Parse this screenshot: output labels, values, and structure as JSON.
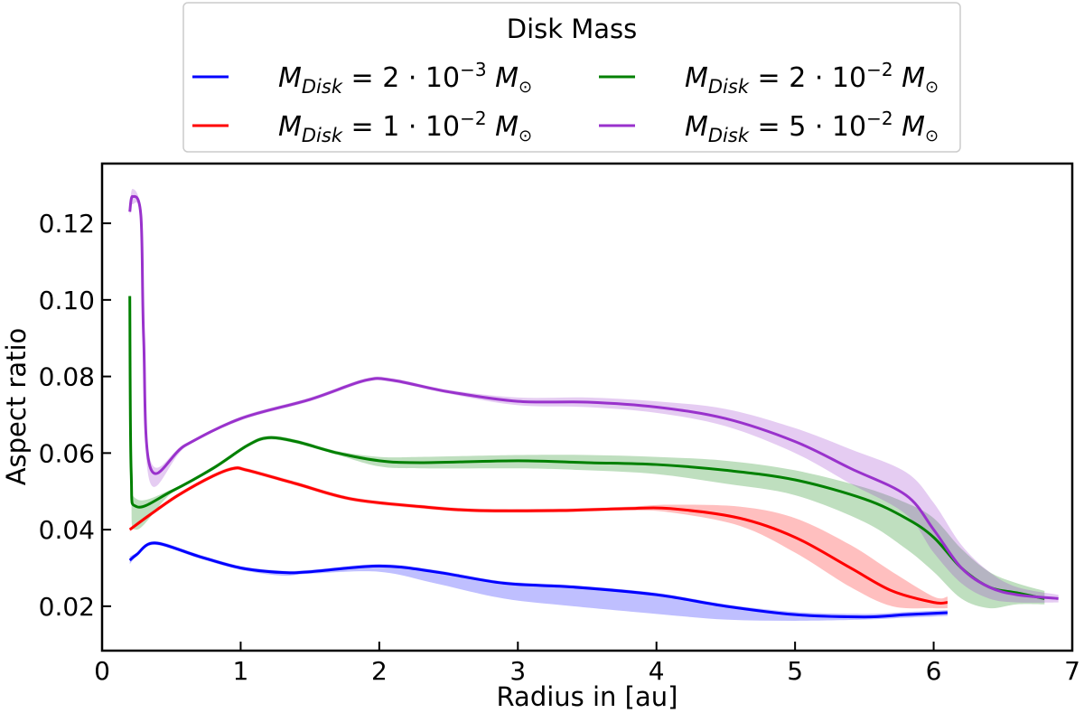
{
  "chart_data": {
    "type": "line",
    "title": "",
    "xlabel": "Radius in [au]",
    "ylabel": "Aspect ratio",
    "xlim": [
      0,
      7
    ],
    "ylim": [
      0.0084,
      0.1356
    ],
    "xticks": [
      "0",
      "1",
      "2",
      "3",
      "4",
      "5",
      "6",
      "7"
    ],
    "yticks": [
      "0.02",
      "0.04",
      "0.06",
      "0.08",
      "0.10",
      "0.12"
    ],
    "grid": false,
    "legend": {
      "title": "Disk Mass",
      "placement": "top-center, above plot",
      "columns": 2
    },
    "series": [
      {
        "label": {
          "symbol": "M",
          "subscript": "Disk",
          "coef": "2",
          "exp": "−3",
          "unit": "M",
          "unit_sub": "⊙"
        },
        "color": "#0000ff",
        "x": [
          0.2,
          0.25,
          0.38,
          0.7,
          1.0,
          1.3,
          1.5,
          2.0,
          2.4,
          2.9,
          3.4,
          4.0,
          4.5,
          5.0,
          5.5,
          5.8,
          6.1
        ],
        "y": [
          0.032,
          0.0335,
          0.0365,
          0.033,
          0.03,
          0.0288,
          0.029,
          0.0305,
          0.029,
          0.026,
          0.025,
          0.023,
          0.02,
          0.0178,
          0.0172,
          0.0178,
          0.0183
        ],
        "band_low": [
          0.031,
          0.033,
          0.036,
          0.0325,
          0.0295,
          0.028,
          0.0285,
          0.029,
          0.026,
          0.022,
          0.02,
          0.018,
          0.0165,
          0.0162,
          0.0165,
          0.017,
          0.0175
        ],
        "band_high": [
          0.033,
          0.034,
          0.037,
          0.0335,
          0.0305,
          0.0293,
          0.0295,
          0.031,
          0.0295,
          0.0265,
          0.0255,
          0.0235,
          0.0205,
          0.0185,
          0.018,
          0.0185,
          0.019
        ]
      },
      {
        "label": {
          "symbol": "M",
          "subscript": "Disk",
          "coef": "1",
          "exp": "−2",
          "unit": "M",
          "unit_sub": "⊙"
        },
        "color": "#ff0000",
        "x": [
          0.2,
          0.35,
          0.55,
          0.8,
          0.95,
          1.05,
          1.4,
          1.8,
          2.3,
          2.7,
          3.3,
          3.8,
          4.1,
          4.6,
          5.0,
          5.4,
          5.7,
          6.0,
          6.1
        ],
        "y": [
          0.04,
          0.044,
          0.049,
          0.054,
          0.056,
          0.0555,
          0.052,
          0.048,
          0.046,
          0.045,
          0.045,
          0.0455,
          0.0455,
          0.043,
          0.038,
          0.03,
          0.024,
          0.021,
          0.021
        ],
        "band_low": [
          0.0395,
          0.0435,
          0.0485,
          0.0535,
          0.0555,
          0.055,
          0.0515,
          0.0475,
          0.0455,
          0.0445,
          0.0445,
          0.045,
          0.0445,
          0.041,
          0.034,
          0.025,
          0.02,
          0.0195,
          0.0195
        ],
        "band_high": [
          0.0405,
          0.0445,
          0.0495,
          0.0545,
          0.0565,
          0.056,
          0.0525,
          0.0485,
          0.0465,
          0.0455,
          0.0455,
          0.046,
          0.0465,
          0.046,
          0.043,
          0.036,
          0.029,
          0.0225,
          0.0225
        ]
      },
      {
        "label": {
          "symbol": "M",
          "subscript": "Disk",
          "coef": "2",
          "exp": "−2",
          "unit": "M",
          "unit_sub": "⊙"
        },
        "color": "#008000",
        "x": [
          0.2,
          0.21,
          0.25,
          0.5,
          0.8,
          1.05,
          1.2,
          1.4,
          1.7,
          2.0,
          2.3,
          3.0,
          3.5,
          4.0,
          4.5,
          5.0,
          5.5,
          5.8,
          6.0,
          6.2,
          6.4,
          6.6,
          6.8
        ],
        "y": [
          0.101,
          0.055,
          0.046,
          0.05,
          0.056,
          0.062,
          0.064,
          0.063,
          0.06,
          0.058,
          0.0575,
          0.058,
          0.0575,
          0.057,
          0.0555,
          0.053,
          0.048,
          0.043,
          0.038,
          0.03,
          0.025,
          0.0235,
          0.022
        ],
        "band_low": [
          0.099,
          0.05,
          0.04,
          0.0495,
          0.0555,
          0.0615,
          0.0635,
          0.0625,
          0.0595,
          0.0565,
          0.056,
          0.056,
          0.0555,
          0.0545,
          0.052,
          0.049,
          0.042,
          0.035,
          0.029,
          0.022,
          0.0195,
          0.0205,
          0.0205
        ],
        "band_high": [
          0.103,
          0.058,
          0.048,
          0.0505,
          0.0565,
          0.0625,
          0.0645,
          0.0635,
          0.0605,
          0.059,
          0.059,
          0.0595,
          0.0595,
          0.059,
          0.058,
          0.0555,
          0.051,
          0.047,
          0.043,
          0.035,
          0.029,
          0.026,
          0.024
        ]
      },
      {
        "label": {
          "symbol": "M",
          "subscript": "Disk",
          "coef": "5",
          "exp": "−2",
          "unit": "M",
          "unit_sub": "⊙"
        },
        "color": "#9932cc",
        "x": [
          0.2,
          0.22,
          0.28,
          0.3,
          0.35,
          0.6,
          1.0,
          1.5,
          1.9,
          2.1,
          2.5,
          3.0,
          3.5,
          4.0,
          4.5,
          5.0,
          5.4,
          5.8,
          6.0,
          6.2,
          6.4,
          6.6,
          6.9
        ],
        "y": [
          0.123,
          0.127,
          0.122,
          0.09,
          0.056,
          0.062,
          0.069,
          0.074,
          0.079,
          0.079,
          0.076,
          0.0735,
          0.0733,
          0.072,
          0.069,
          0.063,
          0.056,
          0.049,
          0.04,
          0.03,
          0.025,
          0.023,
          0.022
        ],
        "band_low": [
          0.122,
          0.125,
          0.121,
          0.085,
          0.052,
          0.0615,
          0.0685,
          0.0735,
          0.0785,
          0.0785,
          0.0755,
          0.0725,
          0.072,
          0.0705,
          0.067,
          0.06,
          0.052,
          0.044,
          0.034,
          0.026,
          0.022,
          0.021,
          0.021
        ],
        "band_high": [
          0.124,
          0.129,
          0.123,
          0.095,
          0.058,
          0.0625,
          0.0695,
          0.0745,
          0.0795,
          0.0795,
          0.0765,
          0.0745,
          0.0745,
          0.0735,
          0.0715,
          0.0665,
          0.061,
          0.055,
          0.047,
          0.036,
          0.029,
          0.025,
          0.023
        ]
      }
    ]
  }
}
